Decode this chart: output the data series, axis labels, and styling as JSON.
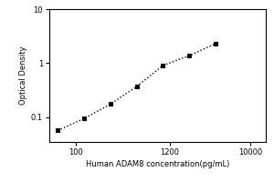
{
  "title": "",
  "xlabel": "Human ADAM8 concentration(pg/mL)",
  "ylabel": "Optical Density",
  "x_data": [
    62.5,
    125,
    250,
    500,
    1000,
    2000,
    4000
  ],
  "y_data": [
    0.057,
    0.095,
    0.175,
    0.37,
    0.91,
    1.38,
    2.3
  ],
  "xlim": [
    50,
    15000
  ],
  "ylim": [
    0.035,
    10
  ],
  "marker": "s",
  "marker_color": "black",
  "marker_size": 3.5,
  "line_style": ":",
  "line_color": "black",
  "line_width": 1.0,
  "background_color": "#ffffff",
  "xlabel_fontsize": 6,
  "ylabel_fontsize": 6,
  "tick_fontsize": 6,
  "x_ticks": [
    100,
    1200,
    10000
  ],
  "y_ticks": [
    0.1,
    1,
    10
  ]
}
